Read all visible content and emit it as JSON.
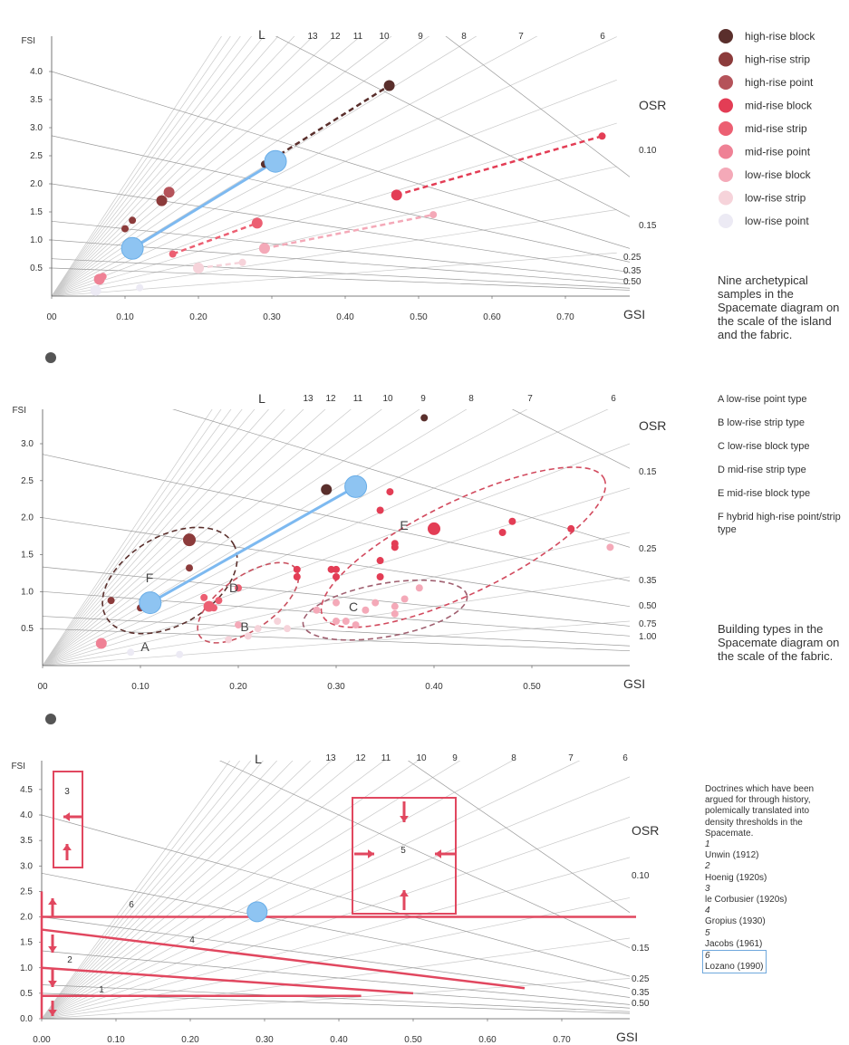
{
  "panels": {
    "a": {
      "fsi_label": "FSI",
      "gsi_label": "GSI",
      "l_label": "L",
      "osr_label": "OSR",
      "y_ticks": [
        "4.0",
        "3.5",
        "3.0",
        "2.5",
        "2.0",
        "1.5",
        "1.0",
        "0.5"
      ],
      "x_ticks": [
        "00",
        "0.10",
        "0.20",
        "0.30",
        "0.40",
        "0.50",
        "0.60",
        "0.70"
      ],
      "l_ticks": [
        "13",
        "12",
        "11",
        "10",
        "9",
        "8",
        "7",
        "6"
      ],
      "osr_ticks": [
        "0.10",
        "0.15",
        "0.25",
        "0.35",
        "0.50"
      ]
    },
    "b": {
      "fsi_label": "FSI",
      "gsi_label": "GSI",
      "l_label": "L",
      "osr_label": "OSR",
      "y_ticks": [
        "3.0",
        "2.5",
        "2.0",
        "1.5",
        "1.0",
        "0.5"
      ],
      "x_ticks": [
        "00",
        "0.10",
        "0.20",
        "0.30",
        "0.40",
        "0.50"
      ],
      "l_ticks": [
        "13",
        "12",
        "11",
        "10",
        "9",
        "8",
        "7",
        "6"
      ],
      "osr_ticks": [
        "0.15",
        "0.25",
        "0.35",
        "0.50",
        "0.75",
        "1.00"
      ],
      "group_letters": [
        "A",
        "B",
        "C",
        "D",
        "E",
        "F"
      ]
    },
    "c": {
      "fsi_label": "FSI",
      "gsi_label": "GSI",
      "l_label": "L",
      "osr_label": "OSR",
      "y_ticks": [
        "4.5",
        "4.0",
        "3.5",
        "3.0",
        "2.5",
        "2.0",
        "1.5",
        "1.0",
        "0.5",
        "0.0"
      ],
      "x_ticks": [
        "0.00",
        "0.10",
        "0.20",
        "0.30",
        "0.40",
        "0.50",
        "0.60",
        "0.70"
      ],
      "l_ticks": [
        "13",
        "12",
        "11",
        "10",
        "9",
        "8",
        "7",
        "6"
      ],
      "osr_ticks": [
        "0.10",
        "0.15",
        "0.25",
        "0.35",
        "0.50"
      ],
      "doctrine_numbers": [
        "1",
        "2",
        "3",
        "4",
        "5",
        "6"
      ]
    }
  },
  "legend": [
    {
      "label": "high-rise block",
      "color": "#5a2f2c"
    },
    {
      "label": "high-rise strip",
      "color": "#8c3b3b"
    },
    {
      "label": "high-rise point",
      "color": "#b5535a"
    },
    {
      "label": "mid-rise block",
      "color": "#e33d55"
    },
    {
      "label": "mid-rise strip",
      "color": "#ec5f72"
    },
    {
      "label": "mid-rise point",
      "color": "#ef8195"
    },
    {
      "label": "low-rise block",
      "color": "#f4a9b8"
    },
    {
      "label": "low-rise strip",
      "color": "#f6d3da"
    },
    {
      "label": "low-rise point",
      "color": "#eceaf4"
    }
  ],
  "captions": {
    "first": "Nine archetypical samples in the Spacemate diagram on the scale of the island and the fabric.",
    "second": "Building types in the Spacemate diagram on the scale of the fabric.",
    "third": "Doctrines which have been argued for through history, polemically translated into density thresholds in the Spacemate."
  },
  "building_types": [
    "A  low-rise point type",
    "B  low-rise strip type",
    "C  low-rise block type",
    "D  mid-rise strip type",
    "E  mid-rise block type",
    "F  hybrid high-rise point/strip type"
  ],
  "doctrines": [
    {
      "num": "1",
      "name": "Unwin (1912)"
    },
    {
      "num": "2",
      "name": "Hoenig (1920s)"
    },
    {
      "num": "3",
      "name": "le Corbusier (1920s)"
    },
    {
      "num": "4",
      "name": "Gropius (1930)"
    },
    {
      "num": "5",
      "name": "Jacobs (1961)"
    },
    {
      "num": "6",
      "name": "Lozano (1990)"
    }
  ],
  "chart_data": [
    {
      "type": "scatter",
      "xlabel": "GSI",
      "ylabel": "FSI",
      "xlim": [
        0,
        0.77
      ],
      "ylim": [
        0,
        4.3
      ],
      "series": [
        {
          "name": "high-rise block",
          "points": [
            [
              0.46,
              3.75
            ],
            [
              0.29,
              2.35
            ]
          ]
        },
        {
          "name": "high-rise strip",
          "points": [
            [
              0.15,
              1.7
            ],
            [
              0.1,
              1.2
            ],
            [
              0.11,
              1.35
            ]
          ]
        },
        {
          "name": "high-rise point",
          "points": [
            [
              0.16,
              1.85
            ]
          ]
        },
        {
          "name": "mid-rise block",
          "points": [
            [
              0.47,
              1.8
            ],
            [
              0.75,
              2.85
            ]
          ]
        },
        {
          "name": "mid-rise strip",
          "points": [
            [
              0.28,
              1.3
            ],
            [
              0.165,
              0.75
            ]
          ]
        },
        {
          "name": "mid-rise point",
          "points": [
            [
              0.065,
              0.3
            ],
            [
              0.07,
              0.35
            ]
          ]
        },
        {
          "name": "low-rise block",
          "points": [
            [
              0.29,
              0.85
            ],
            [
              0.52,
              1.45
            ]
          ]
        },
        {
          "name": "low-rise strip",
          "points": [
            [
              0.2,
              0.5
            ],
            [
              0.26,
              0.6
            ]
          ]
        },
        {
          "name": "low-rise point",
          "points": [
            [
              0.06,
              0.1
            ],
            [
              0.12,
              0.15
            ]
          ]
        }
      ],
      "highlight": [
        [
          0.11,
          0.85
        ],
        [
          0.305,
          2.4
        ]
      ],
      "trend_lines": [
        {
          "from": [
            0.29,
            2.35
          ],
          "to": [
            0.46,
            3.75
          ],
          "color": "#5a2f2c"
        },
        {
          "from": [
            0.47,
            1.8
          ],
          "to": [
            0.75,
            2.85
          ],
          "color": "#e33d55"
        },
        {
          "from": [
            0.165,
            0.75
          ],
          "to": [
            0.28,
            1.3
          ],
          "color": "#ec5f72"
        },
        {
          "from": [
            0.29,
            0.85
          ],
          "to": [
            0.52,
            1.45
          ],
          "color": "#f4a9b8"
        },
        {
          "from": [
            0.2,
            0.5
          ],
          "to": [
            0.26,
            0.6
          ],
          "color": "#f6d3da"
        }
      ]
    },
    {
      "type": "scatter",
      "xlabel": "GSI",
      "ylabel": "FSI",
      "xlim": [
        0,
        0.6
      ],
      "ylim": [
        0,
        3.5
      ],
      "points": [
        {
          "x": 0.39,
          "y": 3.35,
          "c": "#5a2f2c",
          "r": 4
        },
        {
          "x": 0.29,
          "y": 2.38,
          "c": "#5a2f2c",
          "r": 6
        },
        {
          "x": 0.15,
          "y": 1.7,
          "c": "#8c3b3b",
          "r": 7
        },
        {
          "x": 0.15,
          "y": 1.32,
          "c": "#8c3b3b",
          "r": 4
        },
        {
          "x": 0.07,
          "y": 0.88,
          "c": "#8c3b3b",
          "r": 4
        },
        {
          "x": 0.1,
          "y": 0.78,
          "c": "#8c3b3b",
          "r": 4
        },
        {
          "x": 0.355,
          "y": 2.35,
          "c": "#e33d55",
          "r": 4
        },
        {
          "x": 0.345,
          "y": 2.1,
          "c": "#e33d55",
          "r": 4
        },
        {
          "x": 0.4,
          "y": 1.85,
          "c": "#e33d55",
          "r": 7
        },
        {
          "x": 0.36,
          "y": 1.65,
          "c": "#e33d55",
          "r": 4
        },
        {
          "x": 0.36,
          "y": 1.6,
          "c": "#e33d55",
          "r": 4
        },
        {
          "x": 0.345,
          "y": 1.42,
          "c": "#e33d55",
          "r": 4
        },
        {
          "x": 0.345,
          "y": 1.2,
          "c": "#e33d55",
          "r": 4
        },
        {
          "x": 0.26,
          "y": 1.3,
          "c": "#e33d55",
          "r": 4
        },
        {
          "x": 0.26,
          "y": 1.2,
          "c": "#e33d55",
          "r": 4
        },
        {
          "x": 0.295,
          "y": 1.3,
          "c": "#e33d55",
          "r": 4
        },
        {
          "x": 0.3,
          "y": 1.2,
          "c": "#e33d55",
          "r": 4
        },
        {
          "x": 0.3,
          "y": 1.3,
          "c": "#e33d55",
          "r": 4
        },
        {
          "x": 0.48,
          "y": 1.95,
          "c": "#e33d55",
          "r": 4
        },
        {
          "x": 0.47,
          "y": 1.8,
          "c": "#e33d55",
          "r": 4
        },
        {
          "x": 0.54,
          "y": 1.85,
          "c": "#e33d55",
          "r": 4
        },
        {
          "x": 0.58,
          "y": 1.6,
          "c": "#f4a9b8",
          "r": 4
        },
        {
          "x": 0.17,
          "y": 0.8,
          "c": "#ec5f72",
          "r": 6
        },
        {
          "x": 0.165,
          "y": 0.92,
          "c": "#ec5f72",
          "r": 4
        },
        {
          "x": 0.18,
          "y": 0.88,
          "c": "#ec5f72",
          "r": 4
        },
        {
          "x": 0.2,
          "y": 1.05,
          "c": "#ec5f72",
          "r": 4
        },
        {
          "x": 0.175,
          "y": 0.78,
          "c": "#ec5f72",
          "r": 4
        },
        {
          "x": 0.06,
          "y": 0.3,
          "c": "#ef8195",
          "r": 6
        },
        {
          "x": 0.2,
          "y": 0.55,
          "c": "#f4a9b8",
          "r": 4
        },
        {
          "x": 0.3,
          "y": 0.85,
          "c": "#f4a9b8",
          "r": 4
        },
        {
          "x": 0.28,
          "y": 0.75,
          "c": "#f4a9b8",
          "r": 4
        },
        {
          "x": 0.31,
          "y": 0.6,
          "c": "#f4a9b8",
          "r": 4
        },
        {
          "x": 0.3,
          "y": 0.6,
          "c": "#f4a9b8",
          "r": 4
        },
        {
          "x": 0.33,
          "y": 0.75,
          "c": "#f4a9b8",
          "r": 4
        },
        {
          "x": 0.34,
          "y": 0.85,
          "c": "#f4a9b8",
          "r": 4
        },
        {
          "x": 0.36,
          "y": 0.8,
          "c": "#f4a9b8",
          "r": 4
        },
        {
          "x": 0.37,
          "y": 0.9,
          "c": "#f4a9b8",
          "r": 4
        },
        {
          "x": 0.385,
          "y": 1.05,
          "c": "#f4a9b8",
          "r": 4
        },
        {
          "x": 0.32,
          "y": 0.55,
          "c": "#f4a9b8",
          "r": 4
        },
        {
          "x": 0.36,
          "y": 0.7,
          "c": "#f4a9b8",
          "r": 4
        },
        {
          "x": 0.25,
          "y": 0.5,
          "c": "#f6d3da",
          "r": 4
        },
        {
          "x": 0.24,
          "y": 0.6,
          "c": "#f6d3da",
          "r": 4
        },
        {
          "x": 0.22,
          "y": 0.5,
          "c": "#f6d3da",
          "r": 4
        },
        {
          "x": 0.21,
          "y": 0.4,
          "c": "#f6d3da",
          "r": 4
        },
        {
          "x": 0.19,
          "y": 0.35,
          "c": "#f6d3da",
          "r": 4
        },
        {
          "x": 0.14,
          "y": 0.15,
          "c": "#eceaf4",
          "r": 4
        },
        {
          "x": 0.09,
          "y": 0.18,
          "c": "#eceaf4",
          "r": 4
        }
      ],
      "highlight": [
        [
          0.11,
          0.85
        ],
        [
          0.32,
          2.42
        ]
      ]
    },
    {
      "type": "line",
      "xlabel": "GSI",
      "ylabel": "FSI",
      "xlim": [
        0,
        0.8
      ],
      "ylim": [
        0,
        4.9
      ],
      "highlight": [
        [
          0.29,
          2.1
        ]
      ]
    }
  ]
}
